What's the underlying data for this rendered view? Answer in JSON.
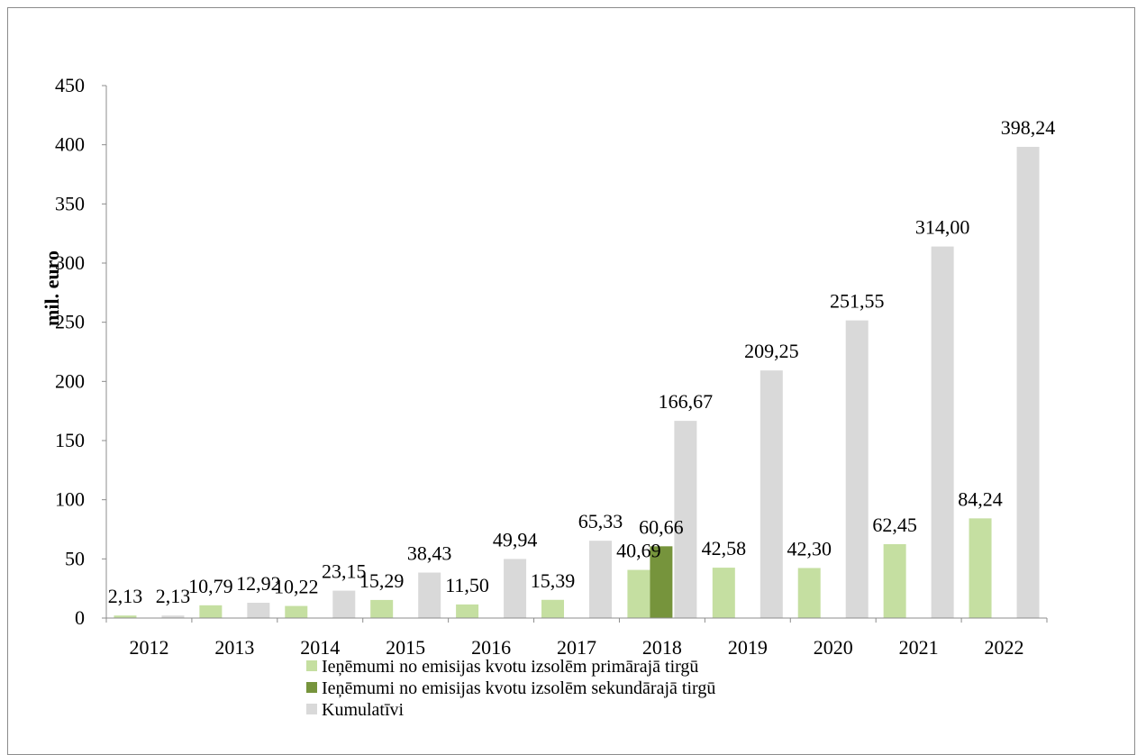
{
  "chart_data": {
    "type": "bar",
    "categories": [
      "2012",
      "2013",
      "2014",
      "2015",
      "2016",
      "2017",
      "2018",
      "2019",
      "2020",
      "2021",
      "2022"
    ],
    "series": [
      {
        "name": "Ieņēmumi no emisijas kvotu izsolēm primārajā tirgū",
        "color": "#c5dfa1",
        "values": [
          2.13,
          10.79,
          10.22,
          15.29,
          11.5,
          15.39,
          40.69,
          42.58,
          42.3,
          62.45,
          84.24
        ],
        "labels": [
          "2,13",
          "10,79",
          "10,22",
          "15,29",
          "11,50",
          "15,39",
          "40,69",
          "42,58",
          "42,30",
          "62,45",
          "84,24"
        ]
      },
      {
        "name": "Ieņēmumi no emisijas kvotu izsolēm sekundārajā tirgū",
        "color": "#76943c",
        "values": [
          null,
          null,
          null,
          null,
          null,
          null,
          60.66,
          null,
          null,
          null,
          null
        ],
        "labels": [
          "",
          "",
          "",
          "",
          "",
          "",
          "60,66",
          "",
          "",
          "",
          ""
        ]
      },
      {
        "name": "Kumulatīvi",
        "color": "#d9d9d9",
        "values": [
          2.13,
          12.92,
          23.15,
          38.43,
          49.94,
          65.33,
          166.67,
          209.25,
          251.55,
          314.0,
          398.24
        ],
        "labels": [
          "2,13",
          "12,92",
          "23,15",
          "38,43",
          "49,94",
          "65,33",
          "166,67",
          "209,25",
          "251,55",
          "314,00",
          "398,24"
        ]
      }
    ],
    "ylabel": "mil. euro",
    "xlabel": "",
    "ylim": [
      0,
      450
    ],
    "yticks": [
      0,
      50,
      100,
      150,
      200,
      250,
      300,
      350,
      400,
      450
    ],
    "grid": false,
    "legend": "bottom"
  }
}
